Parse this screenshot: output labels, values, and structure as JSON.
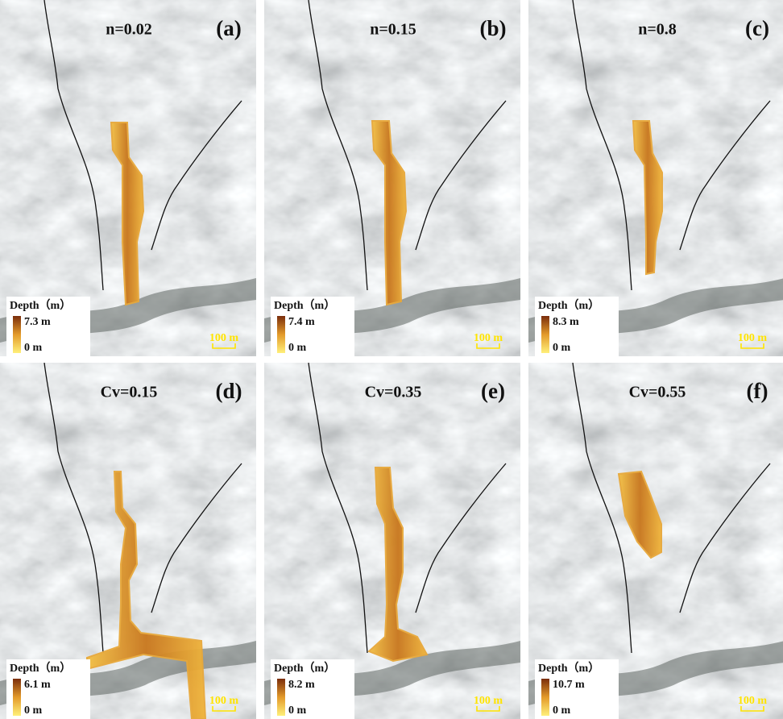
{
  "panels": [
    {
      "param": "n=0.02",
      "label": "(a)",
      "legend_title": "Depth（m）",
      "max": "7.3 m",
      "min": "0 m",
      "scale": "100 m"
    },
    {
      "param": "n=0.15",
      "label": "(b)",
      "legend_title": "Depth（m）",
      "max": "7.4 m",
      "min": "0 m",
      "scale": "100 m"
    },
    {
      "param": "n=0.8",
      "label": "(c)",
      "legend_title": "Depth（m）",
      "max": "8.3 m",
      "min": "0 m",
      "scale": "100 m"
    },
    {
      "param": "Cv=0.15",
      "label": "(d)",
      "legend_title": "Depth（m）",
      "max": "6.1 m",
      "min": "0 m",
      "scale": "100 m"
    },
    {
      "param": "Cv=0.35",
      "label": "(e)",
      "legend_title": "Depth（m）",
      "max": "8.2 m",
      "min": "0 m",
      "scale": "100 m"
    },
    {
      "param": "Cv=0.55",
      "label": "(f)",
      "legend_title": "Depth（m）",
      "max": "10.7 m",
      "min": "0 m",
      "scale": "100 m"
    }
  ]
}
